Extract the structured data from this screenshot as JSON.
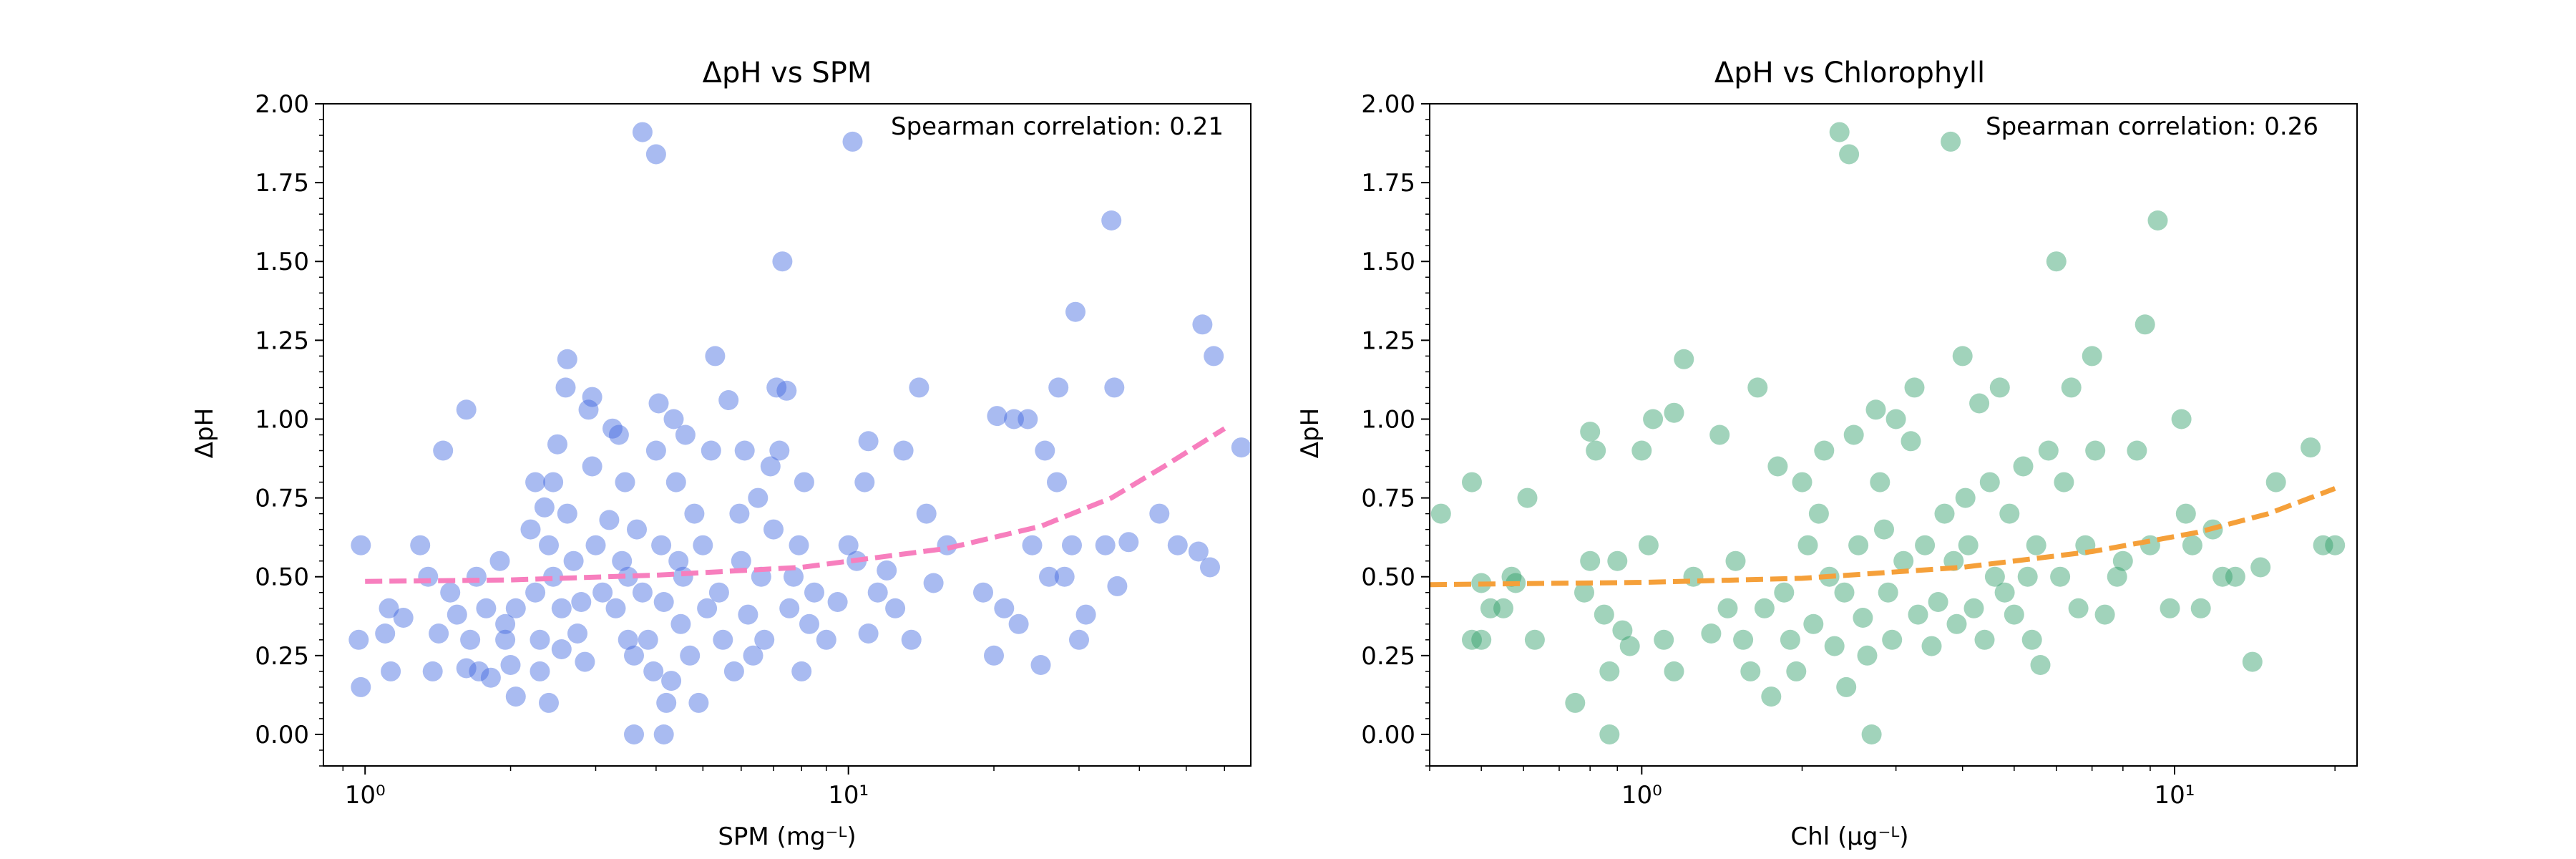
{
  "chart_data": [
    {
      "type": "scatter",
      "title": "ΔpH vs SPM",
      "xlabel": "SPM (mg⁻ᴸ)",
      "ylabel": "ΔpH",
      "xscale": "log",
      "xlim": [
        0.82,
        68
      ],
      "ylim": [
        -0.1,
        2.0
      ],
      "x_tick_labels": [
        "10⁰",
        "10¹"
      ],
      "y_tick_labels": [
        "0.00",
        "0.25",
        "0.50",
        "0.75",
        "1.00",
        "1.25",
        "1.50",
        "1.75",
        "2.00"
      ],
      "annotation": "Spearman correlation: 0.21",
      "point_color": "#4169E1",
      "trend_color": "#F77FBE",
      "trend_curve": [
        [
          1.0,
          0.485
        ],
        [
          2.0,
          0.49
        ],
        [
          4.0,
          0.505
        ],
        [
          8.0,
          0.53
        ],
        [
          16.0,
          0.59
        ],
        [
          25.0,
          0.66
        ],
        [
          35.0,
          0.75
        ],
        [
          45.0,
          0.85
        ],
        [
          60.0,
          0.97
        ]
      ],
      "points": [
        [
          0.98,
          0.6
        ],
        [
          0.97,
          0.3
        ],
        [
          0.98,
          0.15
        ],
        [
          1.1,
          0.32
        ],
        [
          1.12,
          0.4
        ],
        [
          1.13,
          0.2
        ],
        [
          1.2,
          0.37
        ],
        [
          1.3,
          0.6
        ],
        [
          1.35,
          0.5
        ],
        [
          1.38,
          0.2
        ],
        [
          1.42,
          0.32
        ],
        [
          1.45,
          0.9
        ],
        [
          1.5,
          0.45
        ],
        [
          1.55,
          0.38
        ],
        [
          1.62,
          1.03
        ],
        [
          1.62,
          0.21
        ],
        [
          1.65,
          0.3
        ],
        [
          1.7,
          0.5
        ],
        [
          1.72,
          0.2
        ],
        [
          1.78,
          0.4
        ],
        [
          1.82,
          0.18
        ],
        [
          1.9,
          0.55
        ],
        [
          1.95,
          0.35
        ],
        [
          1.95,
          0.3
        ],
        [
          2.0,
          0.22
        ],
        [
          2.05,
          0.4
        ],
        [
          2.05,
          0.12
        ],
        [
          2.2,
          0.65
        ],
        [
          2.25,
          0.8
        ],
        [
          2.25,
          0.45
        ],
        [
          2.3,
          0.3
        ],
        [
          2.3,
          0.2
        ],
        [
          2.4,
          0.1
        ],
        [
          2.35,
          0.72
        ],
        [
          2.4,
          0.6
        ],
        [
          2.45,
          0.8
        ],
        [
          2.45,
          0.5
        ],
        [
          2.5,
          0.92
        ],
        [
          2.55,
          0.4
        ],
        [
          2.55,
          0.27
        ],
        [
          2.6,
          1.1
        ],
        [
          2.62,
          1.19
        ],
        [
          2.62,
          0.7
        ],
        [
          2.7,
          0.55
        ],
        [
          2.75,
          0.32
        ],
        [
          2.8,
          0.42
        ],
        [
          2.85,
          0.23
        ],
        [
          2.9,
          1.03
        ],
        [
          2.95,
          1.07
        ],
        [
          2.95,
          0.85
        ],
        [
          3.0,
          0.6
        ],
        [
          3.1,
          0.45
        ],
        [
          3.2,
          0.68
        ],
        [
          3.25,
          0.97
        ],
        [
          3.3,
          0.4
        ],
        [
          3.35,
          0.95
        ],
        [
          3.4,
          0.55
        ],
        [
          3.45,
          0.8
        ],
        [
          3.5,
          0.5
        ],
        [
          3.5,
          0.3
        ],
        [
          3.6,
          0.25
        ],
        [
          3.6,
          0.0
        ],
        [
          3.65,
          0.65
        ],
        [
          3.75,
          1.91
        ],
        [
          3.75,
          0.45
        ],
        [
          3.85,
          0.3
        ],
        [
          3.95,
          0.2
        ],
        [
          4.0,
          1.84
        ],
        [
          4.0,
          0.9
        ],
        [
          4.05,
          1.05
        ],
        [
          4.1,
          0.6
        ],
        [
          4.15,
          0.42
        ],
        [
          4.15,
          0.0
        ],
        [
          4.2,
          0.1
        ],
        [
          4.3,
          0.17
        ],
        [
          4.35,
          1.0
        ],
        [
          4.4,
          0.8
        ],
        [
          4.45,
          0.55
        ],
        [
          4.5,
          0.35
        ],
        [
          4.55,
          0.5
        ],
        [
          4.6,
          0.95
        ],
        [
          4.7,
          0.25
        ],
        [
          4.8,
          0.7
        ],
        [
          4.9,
          0.1
        ],
        [
          5.0,
          0.6
        ],
        [
          5.1,
          0.4
        ],
        [
          5.2,
          0.9
        ],
        [
          5.3,
          1.2
        ],
        [
          5.4,
          0.45
        ],
        [
          5.5,
          0.3
        ],
        [
          5.65,
          1.06
        ],
        [
          5.8,
          0.2
        ],
        [
          5.95,
          0.7
        ],
        [
          6.0,
          0.55
        ],
        [
          6.1,
          0.9
        ],
        [
          6.2,
          0.38
        ],
        [
          6.35,
          0.25
        ],
        [
          6.5,
          0.75
        ],
        [
          6.6,
          0.5
        ],
        [
          6.7,
          0.3
        ],
        [
          6.9,
          0.85
        ],
        [
          7.0,
          0.65
        ],
        [
          7.1,
          1.1
        ],
        [
          7.2,
          0.9
        ],
        [
          7.3,
          1.5
        ],
        [
          7.45,
          1.09
        ],
        [
          7.55,
          0.4
        ],
        [
          7.7,
          0.5
        ],
        [
          7.9,
          0.6
        ],
        [
          8.0,
          0.2
        ],
        [
          8.1,
          0.8
        ],
        [
          8.3,
          0.35
        ],
        [
          8.5,
          0.45
        ],
        [
          9.0,
          0.3
        ],
        [
          9.5,
          0.42
        ],
        [
          10.0,
          0.6
        ],
        [
          10.2,
          1.88
        ],
        [
          10.4,
          0.55
        ],
        [
          10.8,
          0.8
        ],
        [
          11.0,
          0.32
        ],
        [
          11.0,
          0.93
        ],
        [
          11.5,
          0.45
        ],
        [
          12.0,
          0.52
        ],
        [
          12.5,
          0.4
        ],
        [
          13.0,
          0.9
        ],
        [
          13.5,
          0.3
        ],
        [
          14.0,
          1.1
        ],
        [
          14.5,
          0.7
        ],
        [
          15.0,
          0.48
        ],
        [
          16.0,
          0.6
        ],
        [
          19.0,
          0.45
        ],
        [
          20.0,
          0.25
        ],
        [
          20.3,
          1.01
        ],
        [
          21.0,
          0.4
        ],
        [
          22.0,
          1.0
        ],
        [
          22.5,
          0.35
        ],
        [
          23.5,
          1.0
        ],
        [
          24.0,
          0.6
        ],
        [
          25.0,
          0.22
        ],
        [
          25.5,
          0.9
        ],
        [
          26.0,
          0.5
        ],
        [
          27.0,
          0.8
        ],
        [
          27.2,
          1.1
        ],
        [
          28.0,
          0.5
        ],
        [
          29.0,
          0.6
        ],
        [
          29.5,
          1.34
        ],
        [
          30.0,
          0.3
        ],
        [
          31.0,
          0.38
        ],
        [
          34.0,
          0.6
        ],
        [
          35.0,
          1.63
        ],
        [
          35.5,
          1.1
        ],
        [
          36.0,
          0.47
        ],
        [
          38.0,
          0.61
        ],
        [
          44.0,
          0.7
        ],
        [
          48.0,
          0.6
        ],
        [
          53.0,
          0.58
        ],
        [
          54.0,
          1.3
        ],
        [
          57.0,
          1.2
        ],
        [
          56.0,
          0.53
        ],
        [
          65.0,
          0.91
        ]
      ]
    },
    {
      "type": "scatter",
      "title": "ΔpH vs Chlorophyll",
      "xlabel": "Chl (µg⁻ᴸ)",
      "ylabel": "ΔpH",
      "xscale": "log",
      "xlim": [
        0.4,
        22
      ],
      "ylim": [
        -0.1,
        2.0
      ],
      "x_tick_labels": [
        "10⁰",
        "10¹"
      ],
      "y_tick_labels": [
        "0.00",
        "0.25",
        "0.50",
        "0.75",
        "1.00",
        "1.25",
        "1.50",
        "1.75",
        "2.00"
      ],
      "annotation": "Spearman correlation: 0.26",
      "point_color": "#2E9E68",
      "trend_color": "#F5A03A",
      "trend_curve": [
        [
          0.4,
          0.475
        ],
        [
          1.0,
          0.482
        ],
        [
          2.0,
          0.495
        ],
        [
          4.0,
          0.53
        ],
        [
          7.0,
          0.58
        ],
        [
          11.0,
          0.64
        ],
        [
          15.0,
          0.7
        ],
        [
          20.0,
          0.78
        ]
      ],
      "points": [
        [
          0.42,
          0.7
        ],
        [
          0.48,
          0.8
        ],
        [
          0.48,
          0.3
        ],
        [
          0.5,
          0.48
        ],
        [
          0.5,
          0.3
        ],
        [
          0.52,
          0.4
        ],
        [
          0.55,
          0.4
        ],
        [
          0.57,
          0.5
        ],
        [
          0.58,
          0.48
        ],
        [
          0.61,
          0.75
        ],
        [
          0.63,
          0.3
        ],
        [
          0.75,
          0.1
        ],
        [
          0.78,
          0.45
        ],
        [
          0.8,
          0.96
        ],
        [
          0.8,
          0.55
        ],
        [
          0.82,
          0.9
        ],
        [
          0.85,
          0.38
        ],
        [
          0.87,
          0.2
        ],
        [
          0.87,
          0.0
        ],
        [
          0.9,
          0.55
        ],
        [
          0.92,
          0.33
        ],
        [
          0.95,
          0.28
        ],
        [
          1.0,
          0.9
        ],
        [
          1.03,
          0.6
        ],
        [
          1.05,
          1.0
        ],
        [
          1.1,
          0.3
        ],
        [
          1.15,
          1.02
        ],
        [
          1.15,
          0.2
        ],
        [
          1.2,
          1.19
        ],
        [
          1.25,
          0.5
        ],
        [
          1.35,
          0.32
        ],
        [
          1.4,
          0.95
        ],
        [
          1.45,
          0.4
        ],
        [
          1.5,
          0.55
        ],
        [
          1.55,
          0.3
        ],
        [
          1.6,
          0.2
        ],
        [
          1.65,
          1.1
        ],
        [
          1.7,
          0.4
        ],
        [
          1.75,
          0.12
        ],
        [
          1.8,
          0.85
        ],
        [
          1.85,
          0.45
        ],
        [
          1.9,
          0.3
        ],
        [
          1.95,
          0.2
        ],
        [
          2.0,
          0.8
        ],
        [
          2.05,
          0.6
        ],
        [
          2.1,
          0.35
        ],
        [
          2.15,
          0.7
        ],
        [
          2.2,
          0.9
        ],
        [
          2.25,
          0.5
        ],
        [
          2.3,
          0.28
        ],
        [
          2.35,
          1.91
        ],
        [
          2.4,
          0.45
        ],
        [
          2.42,
          0.15
        ],
        [
          2.45,
          1.84
        ],
        [
          2.5,
          0.95
        ],
        [
          2.55,
          0.6
        ],
        [
          2.6,
          0.37
        ],
        [
          2.65,
          0.25
        ],
        [
          2.7,
          0.0
        ],
        [
          2.75,
          1.03
        ],
        [
          2.8,
          0.8
        ],
        [
          2.85,
          0.65
        ],
        [
          2.9,
          0.45
        ],
        [
          2.95,
          0.3
        ],
        [
          3.0,
          1.0
        ],
        [
          3.1,
          0.55
        ],
        [
          3.2,
          0.93
        ],
        [
          3.25,
          1.1
        ],
        [
          3.3,
          0.38
        ],
        [
          3.4,
          0.6
        ],
        [
          3.5,
          0.28
        ],
        [
          3.6,
          0.42
        ],
        [
          3.7,
          0.7
        ],
        [
          3.8,
          1.88
        ],
        [
          3.85,
          0.55
        ],
        [
          3.9,
          0.35
        ],
        [
          4.0,
          1.2
        ],
        [
          4.05,
          0.75
        ],
        [
          4.1,
          0.6
        ],
        [
          4.2,
          0.4
        ],
        [
          4.3,
          1.05
        ],
        [
          4.4,
          0.3
        ],
        [
          4.5,
          0.8
        ],
        [
          4.6,
          0.5
        ],
        [
          4.7,
          1.1
        ],
        [
          4.8,
          0.45
        ],
        [
          4.9,
          0.7
        ],
        [
          5.0,
          0.38
        ],
        [
          5.2,
          0.85
        ],
        [
          5.3,
          0.5
        ],
        [
          5.4,
          0.3
        ],
        [
          5.5,
          0.6
        ],
        [
          5.6,
          0.22
        ],
        [
          5.8,
          0.9
        ],
        [
          6.0,
          1.5
        ],
        [
          6.1,
          0.5
        ],
        [
          6.2,
          0.8
        ],
        [
          6.4,
          1.1
        ],
        [
          6.6,
          0.4
        ],
        [
          6.8,
          0.6
        ],
        [
          7.0,
          1.2
        ],
        [
          7.1,
          0.9
        ],
        [
          7.4,
          0.38
        ],
        [
          7.8,
          0.5
        ],
        [
          8.0,
          0.55
        ],
        [
          8.5,
          0.9
        ],
        [
          8.8,
          1.3
        ],
        [
          9.0,
          0.6
        ],
        [
          9.3,
          1.63
        ],
        [
          9.8,
          0.4
        ],
        [
          10.3,
          1.0
        ],
        [
          10.5,
          0.7
        ],
        [
          10.8,
          0.6
        ],
        [
          11.2,
          0.4
        ],
        [
          11.8,
          0.65
        ],
        [
          12.3,
          0.5
        ],
        [
          13.0,
          0.5
        ],
        [
          14.0,
          0.23
        ],
        [
          14.5,
          0.53
        ],
        [
          15.5,
          0.8
        ],
        [
          18.0,
          0.91
        ],
        [
          19.0,
          0.6
        ],
        [
          20.0,
          0.6
        ]
      ]
    }
  ]
}
